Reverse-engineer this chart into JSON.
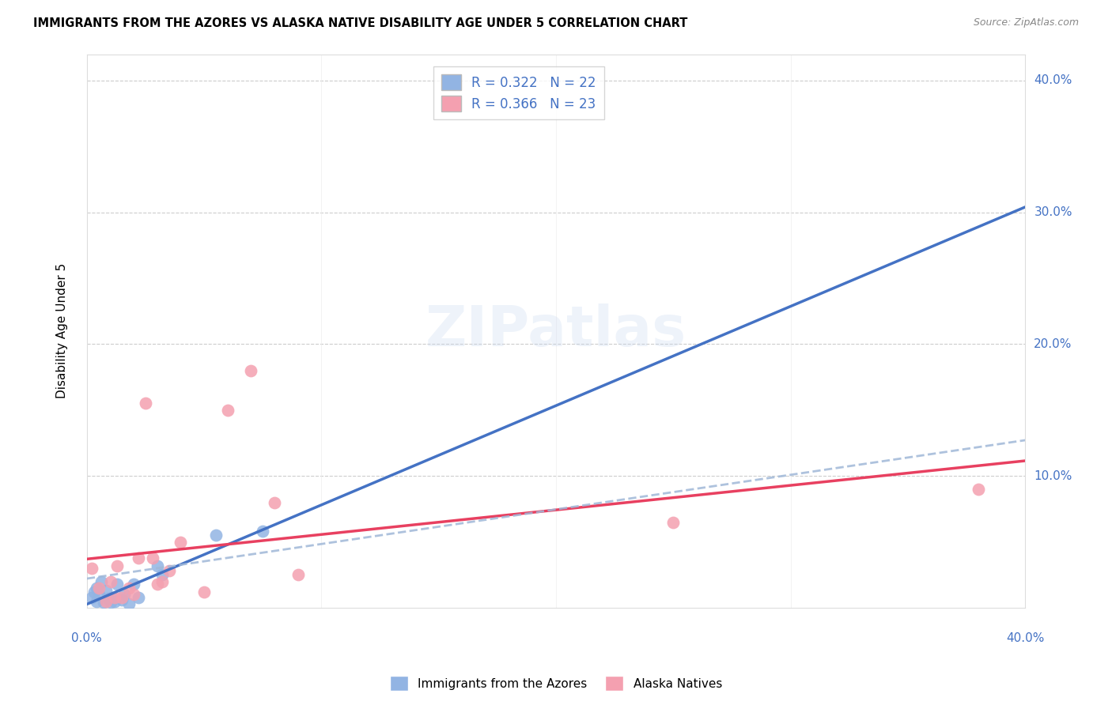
{
  "title": "IMMIGRANTS FROM THE AZORES VS ALASKA NATIVE DISABILITY AGE UNDER 5 CORRELATION CHART",
  "source": "Source: ZipAtlas.com",
  "ylabel": "Disability Age Under 5",
  "legend_label1": "Immigrants from the Azores",
  "legend_label2": "Alaska Natives",
  "R1": 0.322,
  "N1": 22,
  "R2": 0.366,
  "N2": 23,
  "xlim": [
    0.0,
    0.4
  ],
  "ylim": [
    0.0,
    0.42
  ],
  "color_blue": "#92b4e3",
  "color_pink": "#f4a0b0",
  "color_blue_line": "#4472C4",
  "color_pink_line": "#E84060",
  "color_dashed": "#a0b8d8",
  "blue_x": [
    0.002,
    0.003,
    0.004,
    0.004,
    0.005,
    0.006,
    0.007,
    0.008,
    0.009,
    0.01,
    0.011,
    0.012,
    0.013,
    0.015,
    0.016,
    0.018,
    0.02,
    0.022,
    0.03,
    0.032,
    0.055,
    0.075
  ],
  "blue_y": [
    0.008,
    0.012,
    0.005,
    0.015,
    0.01,
    0.02,
    0.004,
    0.013,
    0.007,
    0.004,
    0.008,
    0.005,
    0.018,
    0.006,
    0.01,
    0.003,
    0.018,
    0.008,
    0.032,
    0.025,
    0.055,
    0.058
  ],
  "pink_x": [
    0.002,
    0.005,
    0.008,
    0.01,
    0.012,
    0.013,
    0.015,
    0.018,
    0.02,
    0.022,
    0.025,
    0.028,
    0.03,
    0.032,
    0.035,
    0.04,
    0.05,
    0.06,
    0.07,
    0.08,
    0.09,
    0.25,
    0.38
  ],
  "pink_y": [
    0.03,
    0.015,
    0.005,
    0.02,
    0.008,
    0.032,
    0.008,
    0.015,
    0.01,
    0.038,
    0.155,
    0.038,
    0.018,
    0.02,
    0.028,
    0.05,
    0.012,
    0.15,
    0.18,
    0.08,
    0.025,
    0.065,
    0.09
  ]
}
